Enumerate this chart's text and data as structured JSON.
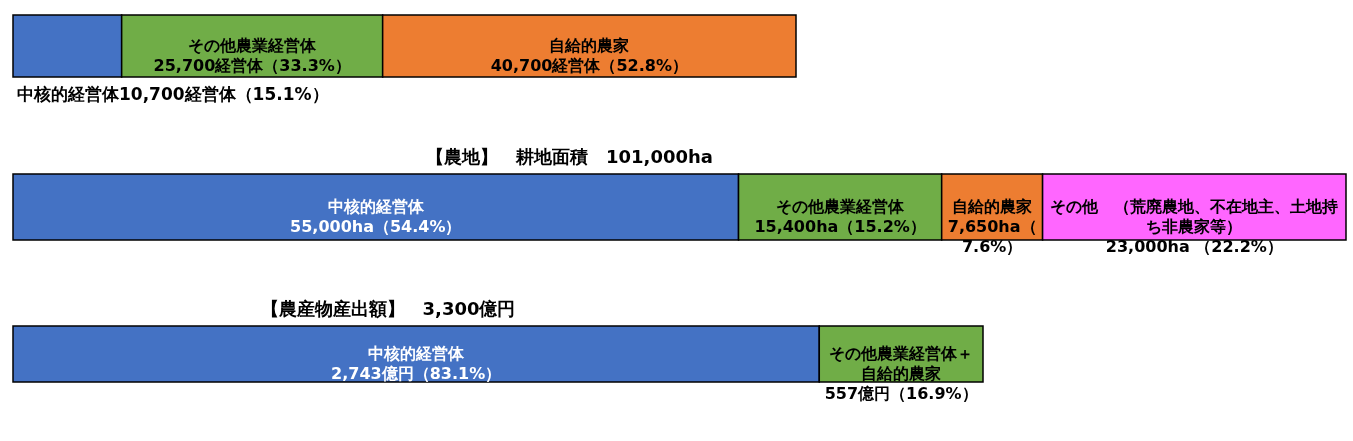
{
  "chart_data": [
    {
      "type": "bar",
      "orientation": "horizontal",
      "stacked": true,
      "categories": [
        null
      ],
      "tick_labels": false,
      "annotations": [
        "中核的経営体10,700経営体（15.1%）"
      ],
      "series": [
        {
          "color": "#4472c4",
          "values": [
            10700
          ],
          "value_labels": [
            null
          ]
        },
        {
          "color": "#70ad47",
          "values": [
            25700
          ],
          "value_labels": [
            "その他農業経営体25,700経営体（33.3%）"
          ]
        },
        {
          "color": "#ed7d31",
          "values": [
            40700
          ],
          "value_labels": [
            "自給的農家40,700経営体（52.8%）"
          ]
        }
      ]
    },
    {
      "type": "bar",
      "orientation": "horizontal",
      "stacked": true,
      "categories": [
        null
      ],
      "tick_labels": false,
      "title": "【農地】　耕地面積　101,000ha",
      "series": [
        {
          "color": "#4472c4",
          "values": [
            55000
          ],
          "value_labels": [
            "中核的経営体55,000ha（54.4%）"
          ]
        },
        {
          "color": "#70ad47",
          "values": [
            15400
          ],
          "value_labels": [
            "その他農業経営体15,400ha（15.2%）"
          ]
        },
        {
          "color": "#ed7d31",
          "values": [
            7650
          ],
          "value_labels": [
            "自給的農家7,650ha（7.6%）"
          ]
        },
        {
          "color": "#ff66ff",
          "values": [
            23000
          ],
          "value_labels": [
            "その他　（荒廃農地、不在地主、土地持ち非農家等）23,000ha （22.2%）"
          ]
        }
      ]
    },
    {
      "type": "bar",
      "orientation": "horizontal",
      "stacked": true,
      "categories": [
        null
      ],
      "tick_labels": false,
      "title": "【農産物産出額】　3,300億円",
      "series": [
        {
          "color": "#4472c4",
          "values": [
            2743
          ],
          "value_labels": [
            "中核的経営体2,743億円（83.1%）"
          ]
        },
        {
          "color": "#70ad47",
          "values": [
            557
          ],
          "value_labels": [
            "その他農業経営体＋自給的農家557億円（16.9%）"
          ]
        }
      ]
    }
  ]
}
